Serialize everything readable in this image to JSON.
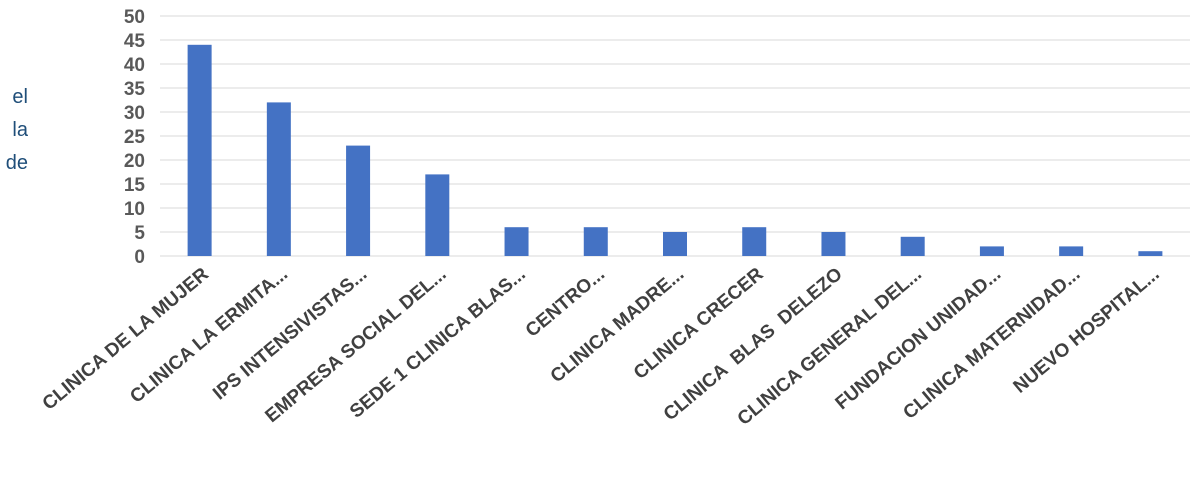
{
  "side_text_lines": [
    "el",
    "la",
    "de"
  ],
  "chart_data": {
    "type": "bar",
    "categories": [
      "CLINICA DE LA MUJER",
      "CLINICA LA ERMITA...",
      "IPS INTENSIVISTAS...",
      "EMPRESA SOCIAL DEL...",
      "SEDE 1 CLINICA BLAS...",
      "CENTRO...",
      "CLINICA MADRE...",
      "CLINICA CRECER",
      "CLINICA  BLAS  DELEZO",
      "CLINICA GENERAL DEL...",
      "FUNDACION UNIDAD...",
      "CLINICA MATERNIDAD...",
      "NUEVO HOSPITAL..."
    ],
    "values": [
      44,
      32,
      23,
      17,
      6,
      6,
      5,
      6,
      5,
      4,
      2,
      2,
      1
    ],
    "ylim": [
      0,
      50
    ],
    "yticks": [
      0,
      5,
      10,
      15,
      20,
      25,
      30,
      35,
      40,
      45,
      50
    ],
    "grid": true,
    "colors": {
      "bar": "#4472c4",
      "grid": "#d9d9d9"
    }
  }
}
